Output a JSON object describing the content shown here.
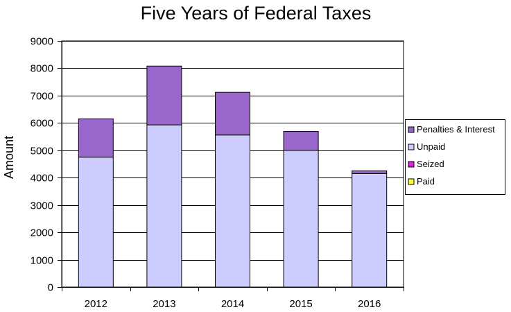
{
  "chart_data": {
    "type": "bar",
    "stacked": true,
    "title": "Five Years of Federal Taxes",
    "xlabel": "",
    "ylabel": "Amount",
    "categories": [
      "2012",
      "2013",
      "2014",
      "2015",
      "2016"
    ],
    "ylim": [
      0,
      9000
    ],
    "yticks": [
      0,
      1000,
      2000,
      3000,
      4000,
      5000,
      6000,
      7000,
      8000,
      9000
    ],
    "grid": true,
    "legend_position": "right",
    "series": [
      {
        "name": "Paid",
        "color": "#ffff33",
        "values": [
          0,
          0,
          0,
          0,
          0
        ]
      },
      {
        "name": "Seized",
        "color": "#e020e0",
        "values": [
          0,
          0,
          0,
          0,
          0
        ]
      },
      {
        "name": "Unpaid",
        "color": "#ccccff",
        "values": [
          4750,
          5930,
          5560,
          5000,
          4150
        ]
      },
      {
        "name": "Penalties & Interest",
        "color": "#9966cc",
        "values": [
          1400,
          2150,
          1560,
          690,
          100
        ]
      }
    ],
    "legend_order": [
      "Penalties & Interest",
      "Unpaid",
      "Seized",
      "Paid"
    ]
  }
}
